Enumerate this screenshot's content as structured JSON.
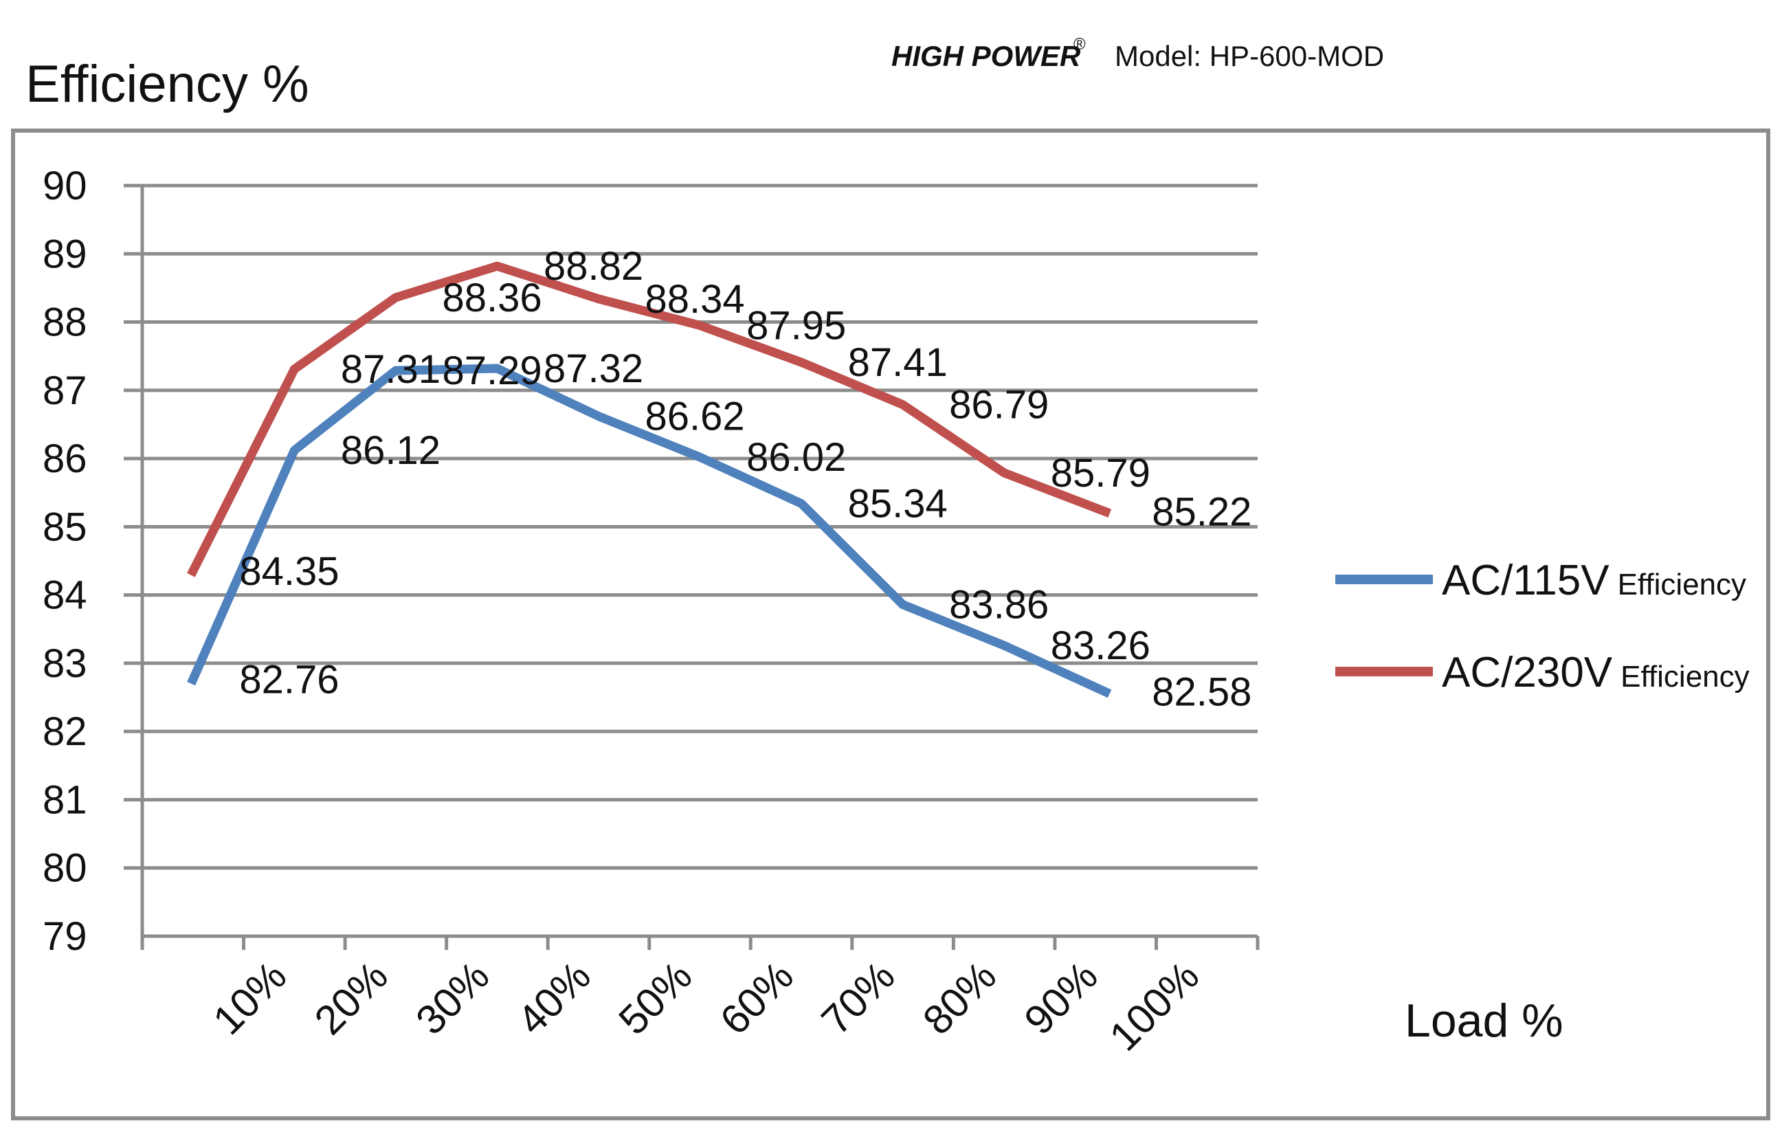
{
  "header": {
    "brand": "HIGH POWER",
    "registered": "®",
    "model": "Model: HP-600-MOD"
  },
  "chart_data": {
    "type": "line",
    "title": "",
    "ylabel": "Efficiency %",
    "xlabel": "Load %",
    "categories": [
      "10%",
      "20%",
      "30%",
      "40%",
      "50%",
      "60%",
      "70%",
      "80%",
      "90%",
      "100%"
    ],
    "ylim": [
      79,
      90
    ],
    "yticks": [
      79,
      80,
      81,
      82,
      83,
      84,
      85,
      86,
      87,
      88,
      89,
      90
    ],
    "grid": true,
    "legend_position": "right",
    "series": [
      {
        "name": "AC/115V",
        "name_suffix": "Efficiency",
        "color": "#4f81bd",
        "values": [
          82.76,
          86.12,
          87.29,
          87.32,
          86.62,
          86.02,
          85.34,
          83.86,
          83.26,
          82.58
        ]
      },
      {
        "name": "AC/230V",
        "name_suffix": "Efficiency",
        "color": "#c0504d",
        "values": [
          84.35,
          87.31,
          88.36,
          88.82,
          88.34,
          87.95,
          87.41,
          86.79,
          85.79,
          85.22
        ]
      }
    ]
  }
}
